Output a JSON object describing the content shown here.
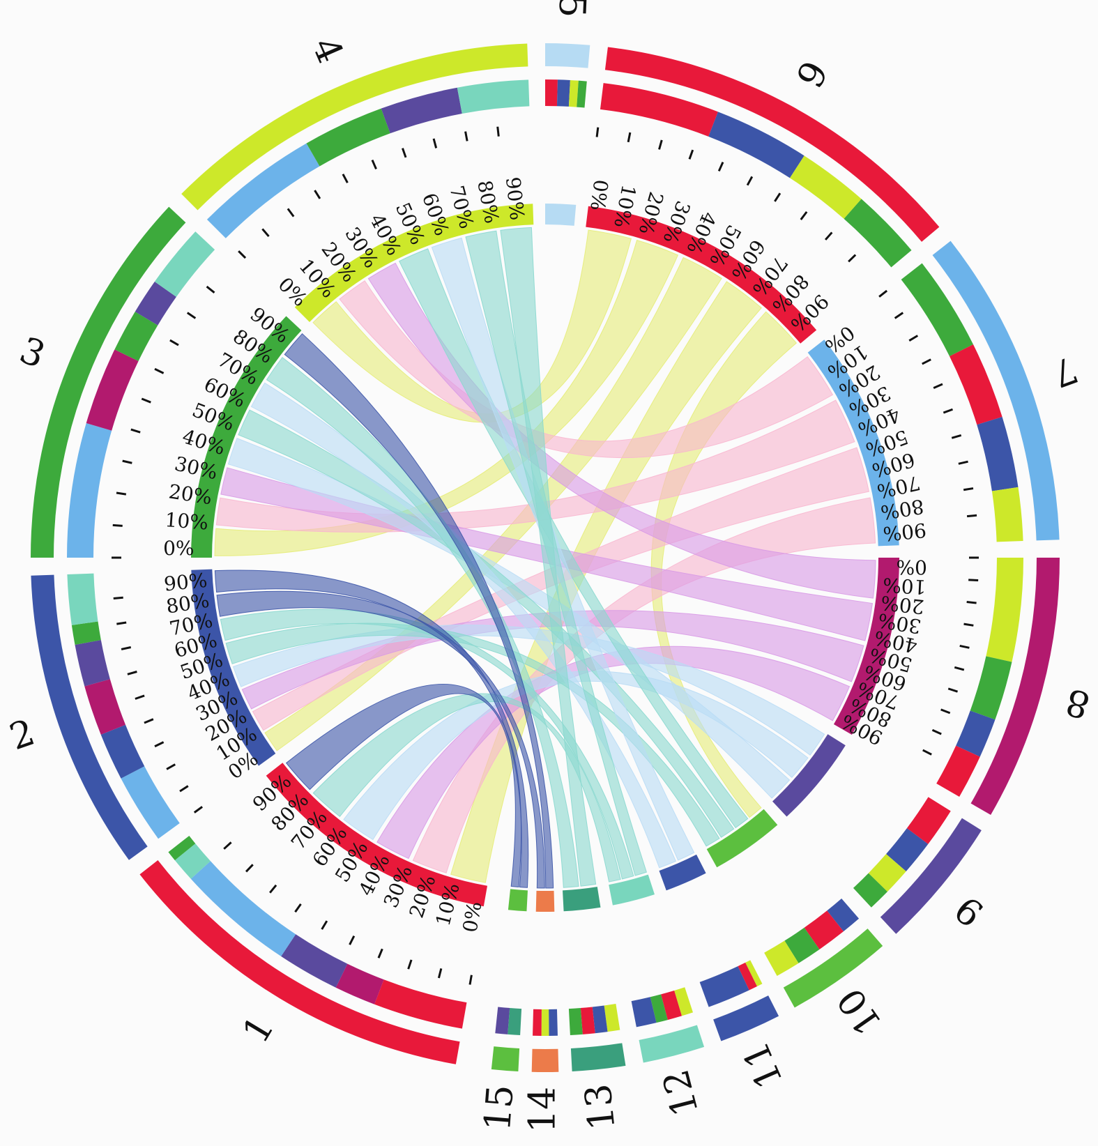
{
  "tick_labels": [
    "0%",
    "10%",
    "20%",
    "30%",
    "40%",
    "50%",
    "60%",
    "70%",
    "80%",
    "90%"
  ],
  "colors": {
    "background": "#fbfbfb",
    "red": "#e8193a",
    "blue": "#3c55a8",
    "green": "#3daa3c",
    "lime": "#cde82a",
    "light_blue": "#b6dbf3",
    "sky": "#6cb3ea",
    "magenta": "#b21a6e",
    "purple": "#5a4a9e",
    "green2": "#5cbf3f",
    "mint": "#79d6bd",
    "teal": "#3a9f7d",
    "orange": "#ec7b4a",
    "ribbon_yellow": "#e6ec78",
    "ribbon_pink": "#f8b6cf",
    "ribbon_violet": "#d89ae6",
    "ribbon_lightblue": "#b9dcf5",
    "ribbon_aqua": "#8ad8cf"
  },
  "segments": [
    {
      "label": "1",
      "color": "#e8193a",
      "composition": [
        [
          "#e8193a",
          0.26
        ],
        [
          "#b21a6e",
          0.12
        ],
        [
          "#5a4a9e",
          0.18
        ],
        [
          "#6cb3ea",
          0.34
        ],
        [
          "#79d6bd",
          0.07
        ],
        [
          "#3daa3c",
          0.03
        ]
      ]
    },
    {
      "label": "2",
      "color": "#3c55a8",
      "composition": [
        [
          "#6cb3ea",
          0.25
        ],
        [
          "#3c55a8",
          0.17
        ],
        [
          "#b21a6e",
          0.18
        ],
        [
          "#5a4a9e",
          0.15
        ],
        [
          "#3daa3c",
          0.07
        ],
        [
          "#79d6bd",
          0.18
        ]
      ]
    },
    {
      "label": "3",
      "color": "#3daa3c",
      "composition": [
        [
          "#6cb3ea",
          0.38
        ],
        [
          "#b21a6e",
          0.22
        ],
        [
          "#3daa3c",
          0.12
        ],
        [
          "#5a4a9e",
          0.1
        ],
        [
          "#79d6bd",
          0.18
        ]
      ]
    },
    {
      "label": "4",
      "color": "#cde82a",
      "composition": [
        [
          "#6cb3ea",
          0.35
        ],
        [
          "#3daa3c",
          0.23
        ],
        [
          "#5a4a9e",
          0.22
        ],
        [
          "#79d6bd",
          0.2
        ]
      ]
    },
    {
      "label": "5",
      "color": "#b6dbf3",
      "composition": [
        [
          "#e8193a",
          0.3
        ],
        [
          "#3c55a8",
          0.3
        ],
        [
          "#cde82a",
          0.2
        ],
        [
          "#3daa3c",
          0.2
        ]
      ]
    },
    {
      "label": "6",
      "color": "#e8193a",
      "composition": [
        [
          "#e8193a",
          0.33
        ],
        [
          "#3c55a8",
          0.27
        ],
        [
          "#cde82a",
          0.2
        ],
        [
          "#3daa3c",
          0.2
        ]
      ]
    },
    {
      "label": "7",
      "color": "#6cb3ea",
      "composition": [
        [
          "#3daa3c",
          0.32
        ],
        [
          "#e8193a",
          0.26
        ],
        [
          "#3c55a8",
          0.24
        ],
        [
          "#cde82a",
          0.18
        ]
      ]
    },
    {
      "label": "8",
      "color": "#b21a6e",
      "composition": [
        [
          "#cde82a",
          0.42
        ],
        [
          "#3daa3c",
          0.24
        ],
        [
          "#3c55a8",
          0.16
        ],
        [
          "#e8193a",
          0.18
        ]
      ]
    },
    {
      "label": "9",
      "color": "#5a4a9e",
      "composition": [
        [
          "#e8193a",
          0.32
        ],
        [
          "#3c55a8",
          0.28
        ],
        [
          "#cde82a",
          0.22
        ],
        [
          "#3daa3c",
          0.18
        ]
      ]
    },
    {
      "label": "10",
      "color": "#5cbf3f",
      "composition": [
        [
          "#3c55a8",
          0.2
        ],
        [
          "#e8193a",
          0.3
        ],
        [
          "#3daa3c",
          0.25
        ],
        [
          "#cde82a",
          0.25
        ]
      ]
    },
    {
      "label": "11",
      "color": "#3c55a8",
      "composition": [
        [
          "#cde82a",
          0.1
        ],
        [
          "#e8193a",
          0.15
        ],
        [
          "#3c55a8",
          0.75
        ]
      ]
    },
    {
      "label": "12",
      "color": "#79d6bd",
      "composition": [
        [
          "#cde82a",
          0.2
        ],
        [
          "#e8193a",
          0.25
        ],
        [
          "#3daa3c",
          0.2
        ],
        [
          "#3c55a8",
          0.35
        ]
      ]
    },
    {
      "label": "13",
      "color": "#3a9f7d",
      "composition": [
        [
          "#cde82a",
          0.25
        ],
        [
          "#3c55a8",
          0.25
        ],
        [
          "#e8193a",
          0.25
        ],
        [
          "#3daa3c",
          0.25
        ]
      ]
    },
    {
      "label": "14",
      "color": "#ec7b4a",
      "composition": [
        [
          "#3c55a8",
          0.35
        ],
        [
          "#cde82a",
          0.3
        ],
        [
          "#e8193a",
          0.35
        ]
      ]
    },
    {
      "label": "15",
      "color": "#5cbf3f",
      "composition": [
        [
          "#3a9f7d",
          0.5
        ],
        [
          "#5a4a9e",
          0.5
        ]
      ]
    }
  ],
  "ribbons": [
    {
      "from": "6",
      "to": "4",
      "color": "#e6ec78"
    },
    {
      "from": "6",
      "to": "3",
      "color": "#e6ec78"
    },
    {
      "from": "6",
      "to": "2",
      "color": "#e6ec78"
    },
    {
      "from": "6",
      "to": "1",
      "color": "#e6ec78"
    },
    {
      "from": "6",
      "to": "10",
      "color": "#e6ec78"
    },
    {
      "from": "7",
      "to": "4",
      "color": "#f8b6cf"
    },
    {
      "from": "7",
      "to": "3",
      "color": "#f8b6cf"
    },
    {
      "from": "7",
      "to": "2",
      "color": "#f8b6cf"
    },
    {
      "from": "7",
      "to": "1",
      "color": "#f8b6cf"
    },
    {
      "from": "8",
      "to": "4",
      "color": "#d89ae6"
    },
    {
      "from": "8",
      "to": "3",
      "color": "#d89ae6"
    },
    {
      "from": "8",
      "to": "2",
      "color": "#d89ae6"
    },
    {
      "from": "8",
      "to": "1",
      "color": "#d89ae6"
    },
    {
      "from": "9",
      "to": "2",
      "color": "#b9dcf5"
    },
    {
      "from": "9",
      "to": "1",
      "color": "#b9dcf5"
    },
    {
      "from": "9",
      "to": "3",
      "color": "#b9dcf5"
    },
    {
      "from": "10",
      "to": "4",
      "color": "#8ad8cf"
    },
    {
      "from": "10",
      "to": "3",
      "color": "#8ad8cf"
    },
    {
      "from": "10",
      "to": "2",
      "color": "#8ad8cf"
    },
    {
      "from": "11",
      "to": "4",
      "color": "#b9dcf5"
    },
    {
      "from": "11",
      "to": "3",
      "color": "#b9dcf5"
    },
    {
      "from": "12",
      "to": "4",
      "color": "#8ad8cf"
    },
    {
      "from": "12",
      "to": "2",
      "color": "#8ad8cf"
    },
    {
      "from": "12",
      "to": "1",
      "color": "#8ad8cf"
    },
    {
      "from": "13",
      "to": "4",
      "color": "#8ad8cf"
    },
    {
      "from": "13",
      "to": "3",
      "color": "#8ad8cf"
    },
    {
      "from": "14",
      "to": "3",
      "color": "#3c55a8"
    },
    {
      "from": "14",
      "to": "2",
      "color": "#3c55a8"
    },
    {
      "from": "15",
      "to": "2",
      "color": "#3c55a8"
    },
    {
      "from": "15",
      "to": "1",
      "color": "#3c55a8"
    }
  ]
}
